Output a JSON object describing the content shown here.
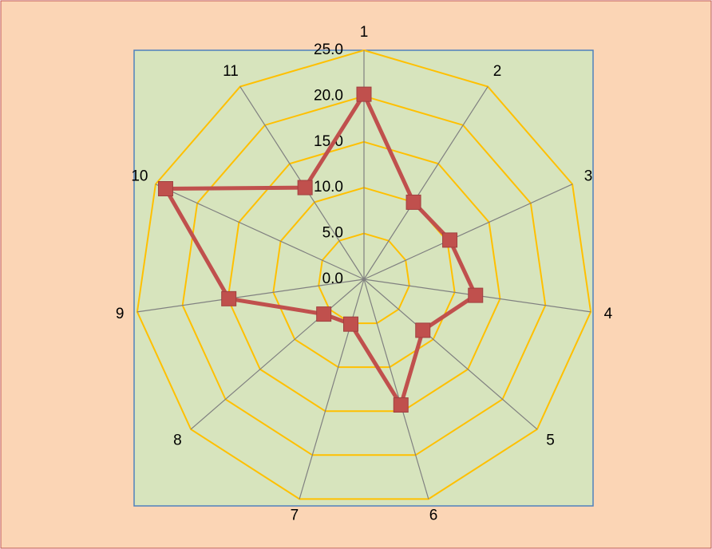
{
  "chart_data": {
    "type": "radar",
    "categories": [
      "1",
      "2",
      "3",
      "4",
      "5",
      "6",
      "7",
      "8",
      "9",
      "10",
      "11"
    ],
    "series": [
      {
        "color": "#c0504d",
        "values": [
          20.2,
          10.0,
          10.3,
          12.3,
          8.5,
          14.3,
          5.1,
          5.8,
          14.9,
          23.8,
          11.9
        ]
      }
    ],
    "ylim": [
      0,
      25
    ],
    "yticks": [
      {
        "value": 0,
        "label": "0.0"
      },
      {
        "value": 5,
        "label": "5.0"
      },
      {
        "value": 10,
        "label": "10.0"
      },
      {
        "value": 15,
        "label": "15.0"
      },
      {
        "value": 20,
        "label": "20.0"
      },
      {
        "value": 25,
        "label": "25.0"
      }
    ],
    "grid": true,
    "grid_color": "#ffc000",
    "spoke_color": "#808080"
  }
}
